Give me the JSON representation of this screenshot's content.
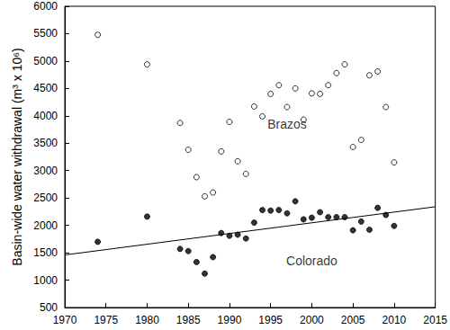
{
  "chart_data": {
    "type": "scatter",
    "y_label": "Basin-wide water withdrawal (m³ x 10⁶)",
    "xlim": [
      1970,
      2015
    ],
    "xticks": [
      1970,
      1975,
      1980,
      1985,
      1990,
      1995,
      2000,
      2005,
      2010,
      2015
    ],
    "ylim": [
      500,
      6000
    ],
    "yticks": [
      500,
      1000,
      1500,
      2000,
      2500,
      3000,
      3500,
      4000,
      4500,
      5000,
      5500,
      6000
    ],
    "grid": false,
    "series": [
      {
        "type": "scatter",
        "marker": "open_circle",
        "color": "#000000",
        "x": [
          1974,
          1980,
          1984,
          1985,
          1986,
          1987,
          1988,
          1989,
          1990,
          1991,
          1992,
          1993,
          1994,
          1995,
          1996,
          1997,
          1998,
          1999,
          2000,
          2001,
          2002,
          2003,
          2004,
          2005,
          2006,
          2007,
          2008,
          2009,
          2010
        ],
        "values": [
          5480,
          4940,
          3870,
          3380,
          2880,
          2530,
          2600,
          3350,
          3890,
          3170,
          2940,
          4170,
          3990,
          4400,
          4560,
          4160,
          4500,
          3930,
          4410,
          4400,
          4560,
          4780,
          4940,
          3430,
          3560,
          4740,
          4810,
          4160,
          3150
        ]
      },
      {
        "type": "scatter",
        "marker": "circle",
        "color": "#000000",
        "x": [
          1974,
          1980,
          1984,
          1985,
          1986,
          1987,
          1988,
          1989,
          1990,
          1991,
          1992,
          1993,
          1994,
          1995,
          1996,
          1997,
          1998,
          1999,
          2000,
          2001,
          2002,
          2003,
          2004,
          2005,
          2006,
          2007,
          2008,
          2009,
          2010
        ],
        "values": [
          1700,
          2160,
          1570,
          1530,
          1330,
          1120,
          1420,
          1860,
          1810,
          1830,
          1760,
          2050,
          2280,
          2270,
          2280,
          2220,
          2440,
          2110,
          2140,
          2240,
          2150,
          2150,
          2150,
          1910,
          2070,
          1920,
          2320,
          2190,
          1990
        ]
      },
      {
        "type": "line",
        "line_style": "solid",
        "color": "#000000",
        "x": [
          1970,
          2015
        ],
        "values": [
          1460,
          2340
        ]
      }
    ],
    "annotations": [
      {
        "text": "Brazos",
        "x": 1997,
        "y": 3850
      },
      {
        "text": "Colorado",
        "x": 2000,
        "y": 1350
      }
    ]
  }
}
